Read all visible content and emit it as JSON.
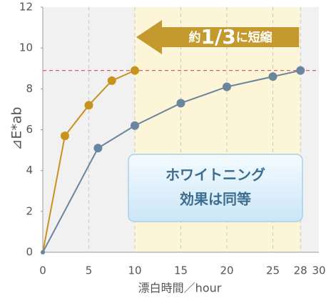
{
  "chart_data": {
    "type": "line",
    "y_label": "⊿E*ab",
    "x_label": "漂白時間／hour",
    "xlim": [
      0,
      30
    ],
    "xticks": [
      0,
      5,
      10,
      15,
      20,
      25,
      28,
      30
    ],
    "ylim": [
      0,
      12
    ],
    "yticks": [
      0,
      2,
      4,
      6,
      8,
      10,
      12
    ],
    "highlight_range": [
      10,
      28
    ],
    "reference_line": {
      "value": 8.9,
      "color": "#e05a6a"
    },
    "series": [
      {
        "color": "#c8921e",
        "x": [
          0,
          2.4,
          5,
          7.5,
          10
        ],
        "values": [
          0,
          5.7,
          7.2,
          8.4,
          8.9
        ]
      },
      {
        "color": "#6a869e",
        "x": [
          0,
          6,
          10,
          15,
          20,
          25,
          28
        ],
        "values": [
          0,
          5.1,
          6.2,
          7.3,
          8.1,
          8.6,
          8.9
        ]
      }
    ],
    "arrow_label": [
      "約",
      "1/3",
      "に短縮"
    ],
    "callout": [
      "ホワイトニング",
      "効果は同等"
    ]
  }
}
